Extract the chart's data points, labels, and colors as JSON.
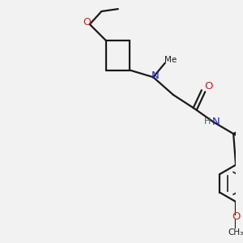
{
  "bg_color": "#f2f2f2",
  "bond_color": "#1a1a1a",
  "N_color": "#2222cc",
  "O_color": "#cc2222",
  "H_color": "#336666",
  "line_width": 1.6,
  "figsize": [
    3.0,
    3.0
  ],
  "dpi": 100,
  "xlim": [
    0,
    10
  ],
  "ylim": [
    0,
    10
  ]
}
